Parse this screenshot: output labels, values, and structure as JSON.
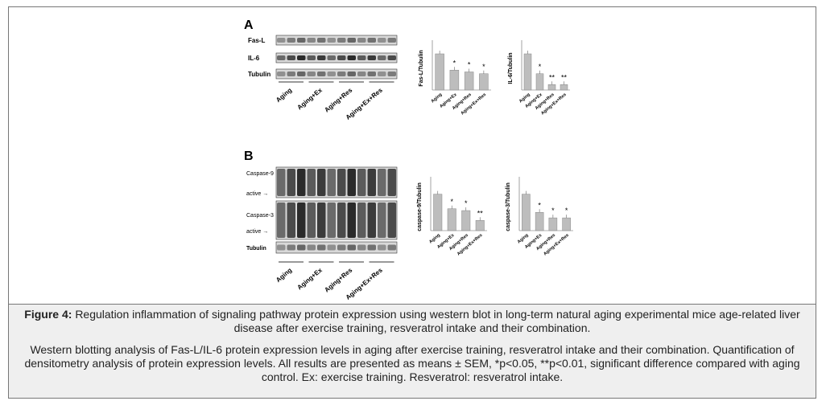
{
  "panels": [
    {
      "label": "A",
      "blot_rows": [
        "Fas-L",
        "IL-6",
        "Tubulin"
      ],
      "lanes": [
        "Aging",
        "Aging+Ex",
        "Aging+Res",
        "Aging+Ex+Res"
      ]
    },
    {
      "label": "B",
      "blot_rows": [
        "Caspase-9",
        "active →",
        "Caspase-3",
        "active →",
        "Tubulin"
      ],
      "lanes": [
        "Aging",
        "Aging+Ex",
        "Aging+Res",
        "Aging+Ex+Res"
      ]
    }
  ],
  "chart_data": [
    {
      "type": "bar",
      "ylabel": "Fas-L/Tubulin",
      "categories": [
        "Aging",
        "Aging+Ex",
        "Aging+Res",
        "Aging+Ex+Res"
      ],
      "values": [
        1.0,
        0.55,
        0.5,
        0.45
      ],
      "annotations": [
        null,
        "*",
        "*",
        "*"
      ],
      "ylim": [
        0,
        1.2
      ],
      "color": "#bdbdbd"
    },
    {
      "type": "bar",
      "ylabel": "IL-6/Tubulin",
      "categories": [
        "Aging",
        "Aging+Ex",
        "Aging+Res",
        "Aging+Ex+Res"
      ],
      "values": [
        1.0,
        0.45,
        0.15,
        0.15
      ],
      "annotations": [
        null,
        "*",
        "**",
        "**"
      ],
      "ylim": [
        0,
        1.2
      ],
      "color": "#bdbdbd"
    },
    {
      "type": "bar",
      "ylabel": "caspase-9/Tubulin",
      "categories": [
        "Aging",
        "Aging+Ex",
        "Aging+Res",
        "Aging+Ex+Res"
      ],
      "values": [
        1.0,
        0.6,
        0.55,
        0.28
      ],
      "annotations": [
        null,
        "*",
        "*",
        "**"
      ],
      "ylim": [
        0,
        1.3
      ],
      "color": "#bdbdbd"
    },
    {
      "type": "bar",
      "ylabel": "caspase-3/Tubulin",
      "categories": [
        "Aging",
        "Aging+Ex",
        "Aging+Res",
        "Aging+Ex+Res"
      ],
      "values": [
        1.0,
        0.5,
        0.35,
        0.35
      ],
      "annotations": [
        null,
        "*",
        "*",
        "*"
      ],
      "ylim": [
        0,
        1.3
      ],
      "color": "#bdbdbd"
    }
  ],
  "caption": {
    "label": "Figure 4:",
    "title": "Regulation inflammation of signaling pathway protein expression using western blot in long-term natural aging experimental mice age-related liver disease after exercise training, resveratrol intake and their combination.",
    "body": "Western blotting analysis of Fas-L/IL-6 protein expression levels in aging after exercise training, resveratrol intake and their combination. Quantification of densitometry analysis of protein expression levels. All results are presented as means ± SEM, *p<0.05, **p<0.01, significant difference compared with aging control. Ex: exercise training. Resveratrol: resveratrol intake."
  }
}
